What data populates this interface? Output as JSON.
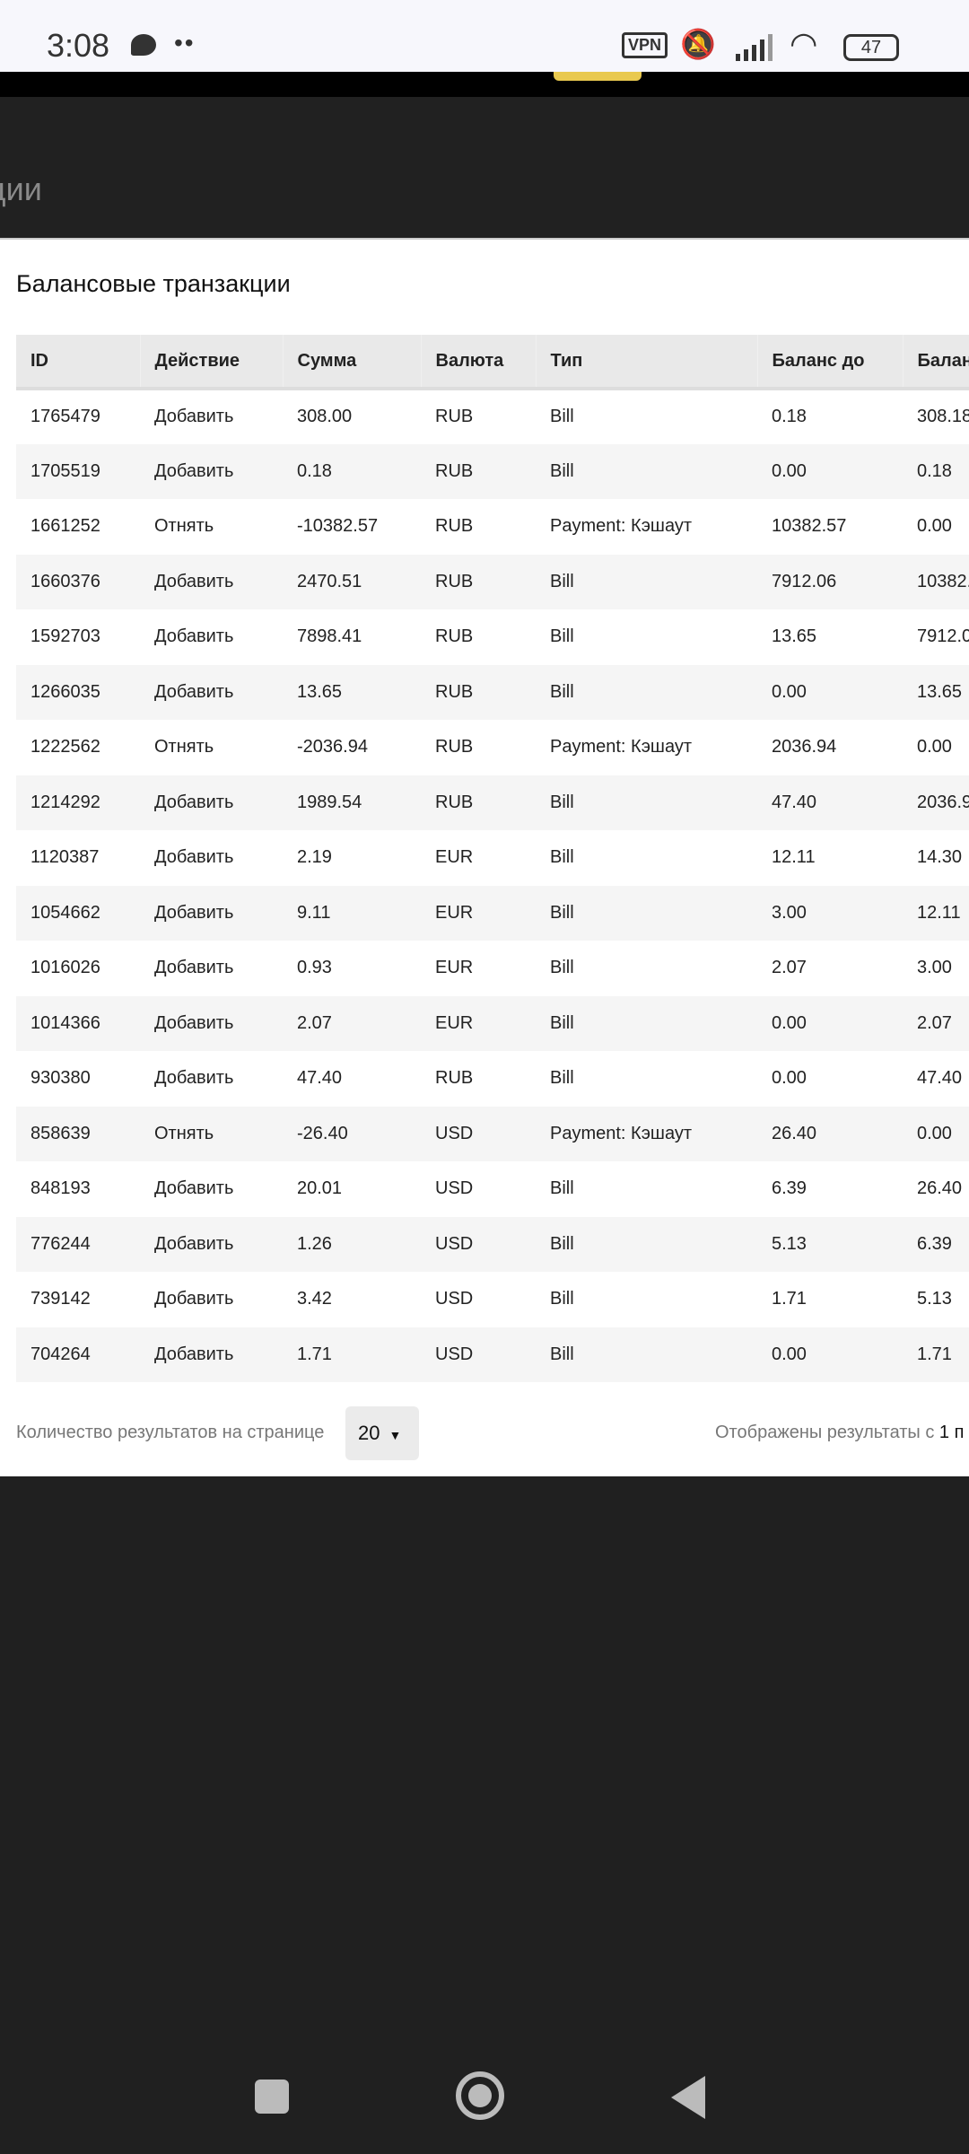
{
  "status_bar": {
    "time": "3:08",
    "vpn": "VPN",
    "battery": "47"
  },
  "header": {
    "title_partial": "ции"
  },
  "card": {
    "title": "Балансовые транзакции"
  },
  "table": {
    "columns": [
      "ID",
      "Действие",
      "Сумма",
      "Валюта",
      "Тип",
      "Баланс до",
      "Балан"
    ],
    "rows": [
      [
        "1765479",
        "Добавить",
        "308.00",
        "RUB",
        "Bill",
        "0.18",
        "308.18"
      ],
      [
        "1705519",
        "Добавить",
        "0.18",
        "RUB",
        "Bill",
        "0.00",
        "0.18"
      ],
      [
        "1661252",
        "Отнять",
        "-10382.57",
        "RUB",
        "Payment: Кэшаут",
        "10382.57",
        "0.00"
      ],
      [
        "1660376",
        "Добавить",
        "2470.51",
        "RUB",
        "Bill",
        "7912.06",
        "10382."
      ],
      [
        "1592703",
        "Добавить",
        "7898.41",
        "RUB",
        "Bill",
        "13.65",
        "7912.0"
      ],
      [
        "1266035",
        "Добавить",
        "13.65",
        "RUB",
        "Bill",
        "0.00",
        "13.65"
      ],
      [
        "1222562",
        "Отнять",
        "-2036.94",
        "RUB",
        "Payment: Кэшаут",
        "2036.94",
        "0.00"
      ],
      [
        "1214292",
        "Добавить",
        "1989.54",
        "RUB",
        "Bill",
        "47.40",
        "2036.9"
      ],
      [
        "1120387",
        "Добавить",
        "2.19",
        "EUR",
        "Bill",
        "12.11",
        "14.30"
      ],
      [
        "1054662",
        "Добавить",
        "9.11",
        "EUR",
        "Bill",
        "3.00",
        "12.11"
      ],
      [
        "1016026",
        "Добавить",
        "0.93",
        "EUR",
        "Bill",
        "2.07",
        "3.00"
      ],
      [
        "1014366",
        "Добавить",
        "2.07",
        "EUR",
        "Bill",
        "0.00",
        "2.07"
      ],
      [
        "930380",
        "Добавить",
        "47.40",
        "RUB",
        "Bill",
        "0.00",
        "47.40"
      ],
      [
        "858639",
        "Отнять",
        "-26.40",
        "USD",
        "Payment: Кэшаут",
        "26.40",
        "0.00"
      ],
      [
        "848193",
        "Добавить",
        "20.01",
        "USD",
        "Bill",
        "6.39",
        "26.40"
      ],
      [
        "776244",
        "Добавить",
        "1.26",
        "USD",
        "Bill",
        "5.13",
        "6.39"
      ],
      [
        "739142",
        "Добавить",
        "3.42",
        "USD",
        "Bill",
        "1.71",
        "5.13"
      ],
      [
        "704264",
        "Добавить",
        "1.71",
        "USD",
        "Bill",
        "0.00",
        "1.71"
      ]
    ]
  },
  "footer": {
    "per_page_label": "Количество результатов на странице",
    "per_page_value": "20",
    "results_label": "Отображены результаты с",
    "results_from": "1 п"
  }
}
